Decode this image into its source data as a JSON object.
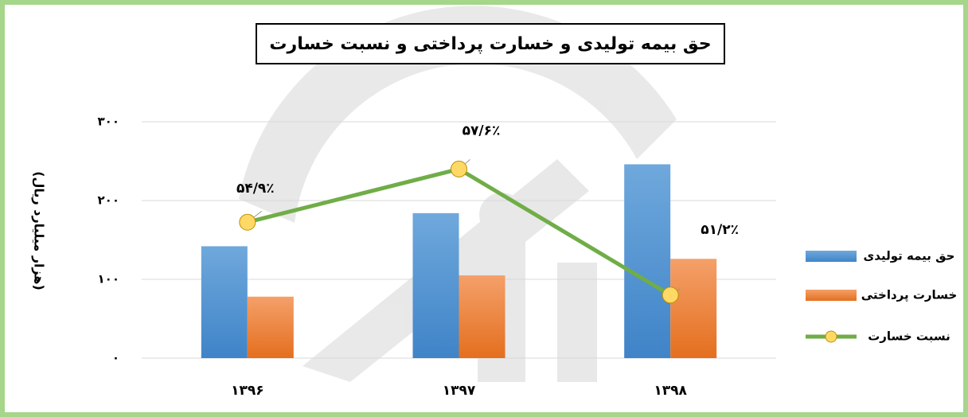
{
  "chart_data": {
    "type": "bar-line",
    "title": "حق بیمه تولیدی و خسارت پرداختی و نسبت خسارت",
    "y_label": "(هزار میلیارد ریال)",
    "categories": [
      "۱۳۹۶",
      "۱۳۹۷",
      "۱۳۹۸"
    ],
    "series": [
      {
        "name": "حق بیمه تولیدی",
        "type": "bar",
        "color": "#5b9bd5",
        "values": [
          142,
          184,
          246
        ]
      },
      {
        "name": "خسارت پرداختی",
        "type": "bar",
        "color": "#ed7d31",
        "values": [
          78,
          105,
          126
        ]
      },
      {
        "name": "نسبت خسارت",
        "type": "line",
        "axis": "y2",
        "color": "#70ad47",
        "marker_color": "#ffd966",
        "values": [
          54.9,
          57.6,
          51.2
        ],
        "value_labels": [
          "۵۴/۹٪",
          "۵۷/۶٪",
          "۵۱/۲٪"
        ]
      }
    ],
    "ylim": [
      0,
      300
    ],
    "yticks": [
      {
        "value": 0,
        "label": "۰"
      },
      {
        "value": 100,
        "label": "۱۰۰"
      },
      {
        "value": 200,
        "label": "۲۰۰"
      },
      {
        "value": 300,
        "label": "۳۰۰"
      }
    ],
    "y2lim": [
      48,
      60
    ],
    "grid": true,
    "legend": "right"
  }
}
